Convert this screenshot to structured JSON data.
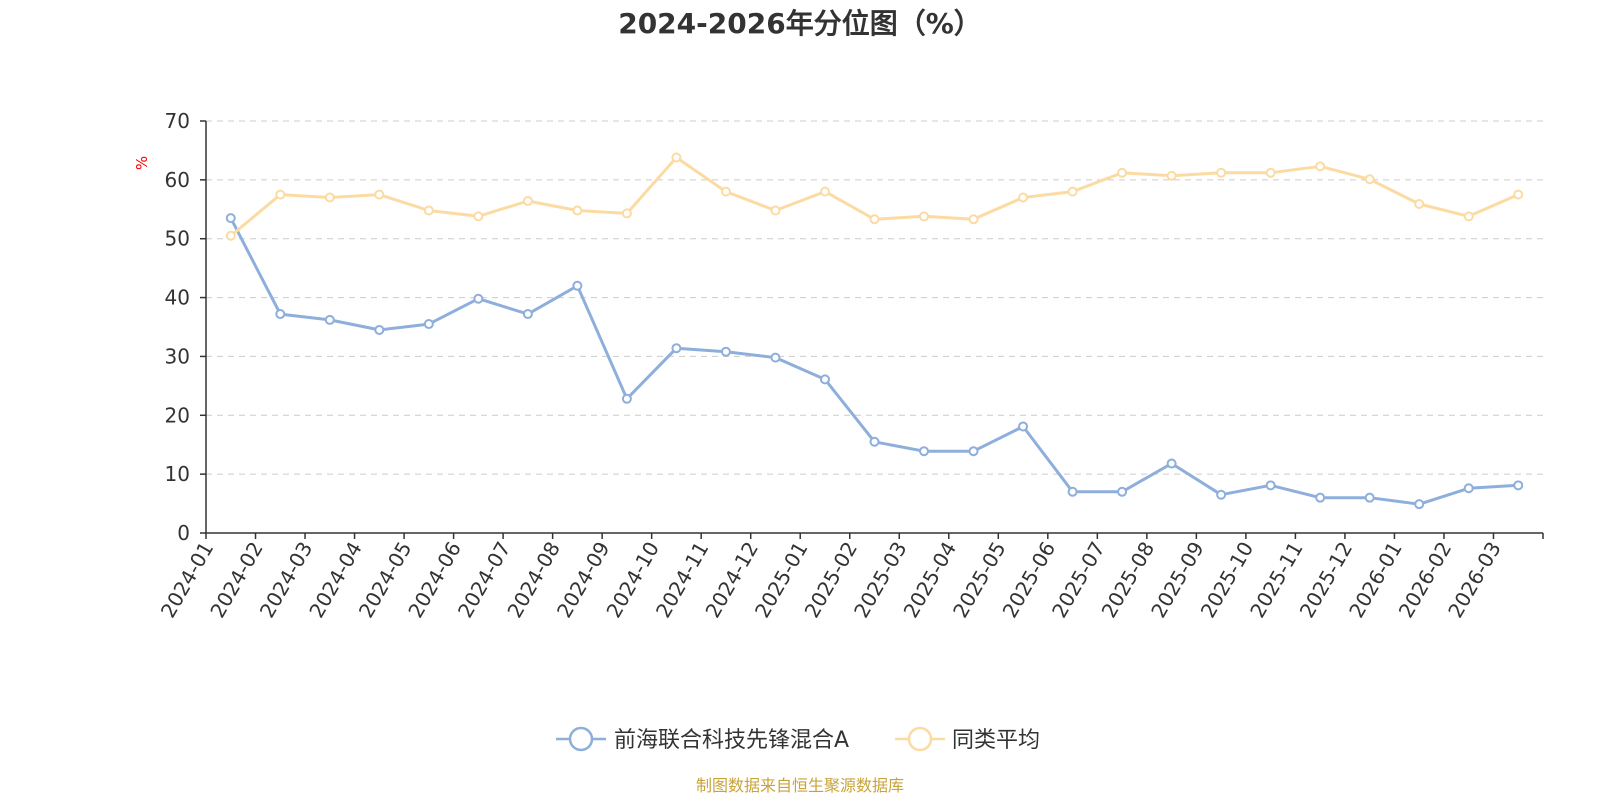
{
  "chart_data": {
    "type": "line",
    "title": "2024-2026年分位图（%）",
    "ylabel": "%",
    "ylim": [
      0,
      70
    ],
    "yticks": [
      0,
      10,
      20,
      30,
      40,
      50,
      60,
      70
    ],
    "grid": true,
    "legend_position": "bottom-center",
    "x": [
      "2024-01",
      "2024-02",
      "2024-03",
      "2024-04",
      "2024-05",
      "2024-06",
      "2024-07",
      "2024-08",
      "2024-09",
      "2024-10",
      "2024-11",
      "2024-12",
      "2025-01",
      "2025-02",
      "2025-03",
      "2025-04",
      "2025-05",
      "2025-06",
      "2025-07",
      "2025-08",
      "2025-09",
      "2025-10",
      "2025-11",
      "2025-12",
      "2026-01",
      "2026-02",
      "2026-03"
    ],
    "series": [
      {
        "name": "前海联合科技先锋混合A",
        "color": "#8eaedb",
        "values": [
          53.5,
          37.2,
          36.2,
          34.5,
          35.5,
          39.8,
          37.2,
          42.0,
          22.8,
          31.4,
          30.8,
          29.8,
          26.1,
          15.5,
          13.9,
          13.9,
          18.1,
          7.0,
          7.0,
          11.8,
          6.5,
          8.1,
          6.0,
          6.0,
          4.9,
          7.6,
          8.1
        ]
      },
      {
        "name": "同类平均",
        "color": "#fcdba3",
        "values": [
          50.5,
          57.5,
          57.0,
          57.5,
          54.8,
          53.8,
          56.4,
          54.8,
          54.3,
          63.8,
          58.0,
          54.8,
          58.0,
          53.3,
          53.8,
          53.3,
          57.0,
          58.0,
          61.2,
          60.7,
          61.2,
          61.2,
          62.3,
          60.1,
          55.9,
          53.8,
          57.5
        ]
      }
    ]
  },
  "source_note": "制图数据来自恒生聚源数据库",
  "colors": {
    "axis": "#333333",
    "grid": "#cccccc",
    "ylabel": "#ff0000",
    "source": "#c9a33a"
  }
}
